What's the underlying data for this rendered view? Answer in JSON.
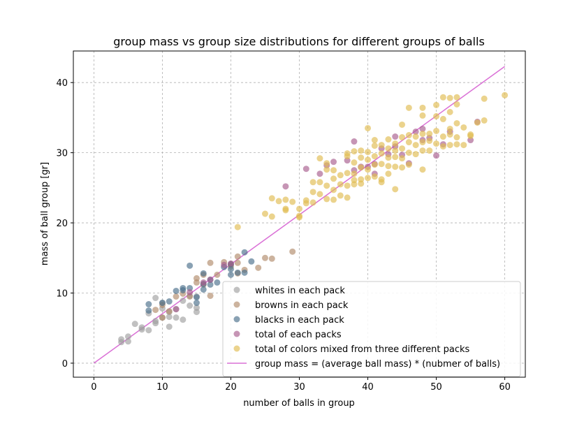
{
  "chart_data": {
    "type": "scatter",
    "title": "group mass vs group size distributions for different groups of balls",
    "xlabel": "number of balls in group",
    "ylabel": "mass of ball group [gr]",
    "xlim": [
      -3,
      63
    ],
    "ylim": [
      -2,
      44.5
    ],
    "xticks": [
      "0",
      "10",
      "20",
      "30",
      "40",
      "50",
      "60"
    ],
    "yticks": [
      "0",
      "10",
      "20",
      "30",
      "40"
    ],
    "grid": true,
    "legend_position": "bottom-right",
    "series": [
      {
        "name": "whites in each pack",
        "color": "#a0a0a0",
        "points": [
          [
            4,
            3.0
          ],
          [
            4,
            3.4
          ],
          [
            5,
            3.1
          ],
          [
            5,
            3.8
          ],
          [
            6,
            5.6
          ],
          [
            7,
            4.8
          ],
          [
            7,
            5.1
          ],
          [
            8,
            4.7
          ],
          [
            8,
            7.1
          ],
          [
            9,
            6.0
          ],
          [
            9,
            5.7
          ],
          [
            9,
            9.3
          ],
          [
            10,
            6.5
          ],
          [
            10,
            7.8
          ],
          [
            10,
            8.6
          ],
          [
            11,
            5.2
          ],
          [
            11,
            6.6
          ],
          [
            11,
            7.3
          ],
          [
            12,
            6.5
          ],
          [
            12,
            7.7
          ],
          [
            13,
            6.2
          ],
          [
            13,
            8.9
          ],
          [
            14,
            8.2
          ],
          [
            14,
            9.6
          ],
          [
            15,
            7.3
          ],
          [
            15,
            7.9
          ],
          [
            15,
            9.5
          ]
        ]
      },
      {
        "name": "browns in each pack",
        "color": "#b08a6a",
        "points": [
          [
            9,
            7.6
          ],
          [
            10,
            8.3
          ],
          [
            10,
            6.5
          ],
          [
            11,
            7.4
          ],
          [
            12,
            9.5
          ],
          [
            13,
            9.9
          ],
          [
            14,
            9.5
          ],
          [
            15,
            12.1
          ],
          [
            15,
            11.5
          ],
          [
            16,
            11.2
          ],
          [
            16,
            12.6
          ],
          [
            17,
            9.6
          ],
          [
            17,
            14.3
          ],
          [
            18,
            12.6
          ],
          [
            19,
            14.4
          ],
          [
            20,
            13.8
          ],
          [
            20,
            14.1
          ],
          [
            21,
            15.2
          ],
          [
            21,
            12.8
          ],
          [
            21,
            14.3
          ],
          [
            22,
            13.3
          ],
          [
            24,
            13.6
          ],
          [
            25,
            15.0
          ],
          [
            26,
            14.9
          ],
          [
            29,
            15.9
          ]
        ]
      },
      {
        "name": "blacks in each pack",
        "color": "#4a6e8a",
        "points": [
          [
            8,
            7.5
          ],
          [
            8,
            8.4
          ],
          [
            10,
            8.6
          ],
          [
            11,
            8.8
          ],
          [
            12,
            10.3
          ],
          [
            13,
            10.7
          ],
          [
            13,
            10.4
          ],
          [
            14,
            10.7
          ],
          [
            14,
            13.9
          ],
          [
            15,
            9.4
          ],
          [
            15,
            8.6
          ],
          [
            16,
            10.5
          ],
          [
            16,
            11.3
          ],
          [
            16,
            12.8
          ],
          [
            17,
            11.9
          ],
          [
            17,
            11.2
          ],
          [
            18,
            11.5
          ],
          [
            19,
            13.7
          ],
          [
            20,
            12.6
          ],
          [
            20,
            13.4
          ],
          [
            20,
            14.1
          ],
          [
            21,
            12.9
          ],
          [
            22,
            15.8
          ],
          [
            22,
            12.9
          ],
          [
            23,
            14.5
          ]
        ]
      },
      {
        "name": "total of each packs",
        "color": "#a85c8e",
        "points": [
          [
            12,
            7.7
          ],
          [
            14,
            10.1
          ],
          [
            16,
            11.5
          ],
          [
            17,
            11.9
          ],
          [
            19,
            14.0
          ],
          [
            20,
            14.2
          ],
          [
            28,
            25.2
          ],
          [
            31,
            27.7
          ],
          [
            33,
            27.0
          ],
          [
            34,
            28.2
          ],
          [
            35,
            28.7
          ],
          [
            37,
            28.9
          ],
          [
            38,
            31.6
          ],
          [
            38,
            27.5
          ],
          [
            39,
            28.0
          ],
          [
            40,
            28.0
          ],
          [
            41,
            27.0
          ],
          [
            41,
            28.4
          ],
          [
            42,
            30.6
          ],
          [
            43,
            29.8
          ],
          [
            44,
            32.3
          ],
          [
            44,
            30.9
          ],
          [
            45,
            29.7
          ],
          [
            46,
            28.5
          ],
          [
            47,
            33.0
          ],
          [
            48,
            31.8
          ],
          [
            48,
            33.4
          ],
          [
            49,
            32.1
          ],
          [
            50,
            29.6
          ],
          [
            51,
            31.2
          ],
          [
            52,
            33.0
          ],
          [
            55,
            31.8
          ],
          [
            56,
            34.4
          ]
        ]
      },
      {
        "name": "total of colors mixed from three different packs",
        "color": "#e0bc50",
        "points": [
          [
            21,
            19.4
          ],
          [
            25,
            21.3
          ],
          [
            26,
            20.9
          ],
          [
            26,
            23.5
          ],
          [
            27,
            23.1
          ],
          [
            28,
            21.8
          ],
          [
            28,
            22.0
          ],
          [
            28,
            23.3
          ],
          [
            29,
            23.0
          ],
          [
            30,
            21.0
          ],
          [
            30,
            20.8
          ],
          [
            30,
            22.0
          ],
          [
            31,
            22.8
          ],
          [
            31,
            23.2
          ],
          [
            32,
            22.9
          ],
          [
            32,
            24.4
          ],
          [
            32,
            25.8
          ],
          [
            33,
            24.1
          ],
          [
            33,
            25.8
          ],
          [
            33,
            29.2
          ],
          [
            34,
            23.4
          ],
          [
            34,
            25.3
          ],
          [
            34,
            27.6
          ],
          [
            34,
            28.5
          ],
          [
            35,
            23.3
          ],
          [
            35,
            24.7
          ],
          [
            35,
            26.3
          ],
          [
            35,
            27.5
          ],
          [
            36,
            23.9
          ],
          [
            36,
            25.5
          ],
          [
            36,
            26.8
          ],
          [
            37,
            23.6
          ],
          [
            37,
            25.3
          ],
          [
            37,
            27.1
          ],
          [
            37,
            29.5
          ],
          [
            37,
            29.9
          ],
          [
            38,
            25.5
          ],
          [
            38,
            26.1
          ],
          [
            38,
            27.0
          ],
          [
            38,
            28.6
          ],
          [
            38,
            30.2
          ],
          [
            39,
            25.6
          ],
          [
            39,
            26.2
          ],
          [
            39,
            27.9
          ],
          [
            39,
            29.3
          ],
          [
            39,
            30.3
          ],
          [
            40,
            26.4
          ],
          [
            40,
            27.6
          ],
          [
            40,
            29.0
          ],
          [
            40,
            30.1
          ],
          [
            40,
            33.5
          ],
          [
            41,
            26.6
          ],
          [
            41,
            28.3
          ],
          [
            41,
            29.5
          ],
          [
            41,
            31.0
          ],
          [
            41,
            31.8
          ],
          [
            42,
            25.8
          ],
          [
            42,
            26.2
          ],
          [
            42,
            28.4
          ],
          [
            42,
            29.9
          ],
          [
            42,
            31.1
          ],
          [
            43,
            27.0
          ],
          [
            43,
            28.1
          ],
          [
            43,
            29.3
          ],
          [
            43,
            30.6
          ],
          [
            43,
            31.9
          ],
          [
            44,
            24.8
          ],
          [
            44,
            28.0
          ],
          [
            44,
            29.4
          ],
          [
            44,
            30.3
          ],
          [
            44,
            31.3
          ],
          [
            45,
            27.9
          ],
          [
            45,
            29.2
          ],
          [
            45,
            30.6
          ],
          [
            45,
            32.2
          ],
          [
            45,
            34.0
          ],
          [
            46,
            28.3
          ],
          [
            46,
            30.0
          ],
          [
            46,
            31.5
          ],
          [
            46,
            32.5
          ],
          [
            46,
            36.4
          ],
          [
            47,
            29.8
          ],
          [
            47,
            31.1
          ],
          [
            47,
            32.3
          ],
          [
            48,
            27.6
          ],
          [
            48,
            30.3
          ],
          [
            48,
            31.5
          ],
          [
            48,
            32.7
          ],
          [
            48,
            35.3
          ],
          [
            48,
            36.4
          ],
          [
            49,
            30.3
          ],
          [
            49,
            31.7
          ],
          [
            49,
            32.7
          ],
          [
            50,
            31.3
          ],
          [
            50,
            33.1
          ],
          [
            50,
            35.2
          ],
          [
            50,
            36.8
          ],
          [
            51,
            30.9
          ],
          [
            51,
            32.3
          ],
          [
            51,
            34.8
          ],
          [
            51,
            37.9
          ],
          [
            52,
            31.1
          ],
          [
            52,
            32.6
          ],
          [
            52,
            33.4
          ],
          [
            52,
            35.8
          ],
          [
            52,
            37.8
          ],
          [
            53,
            31.2
          ],
          [
            53,
            32.2
          ],
          [
            53,
            34.2
          ],
          [
            53,
            36.9
          ],
          [
            53,
            37.9
          ],
          [
            54,
            31.1
          ],
          [
            54,
            33.6
          ],
          [
            55,
            32.4
          ],
          [
            55,
            32.6
          ],
          [
            56,
            34.3
          ],
          [
            57,
            34.6
          ],
          [
            57,
            37.7
          ],
          [
            60,
            38.2
          ]
        ]
      }
    ],
    "line": {
      "name": "group mass = (average ball mass) * (nubmer of balls)",
      "color": "#da70d6",
      "x": [
        0,
        60
      ],
      "y": [
        0,
        42.3
      ]
    }
  }
}
